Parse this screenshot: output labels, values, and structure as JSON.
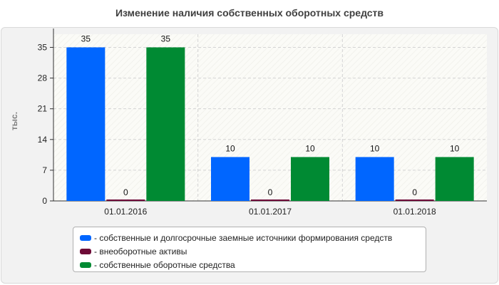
{
  "title": "Изменение наличия собственных оборотных средств",
  "chart_data": {
    "type": "bar",
    "title": "Изменение наличия собственных оборотных средств",
    "ylabel": "тыс.",
    "xlabel": "",
    "categories": [
      "01.01.2016",
      "01.01.2017",
      "01.01.2018"
    ],
    "ylim": [
      0,
      38
    ],
    "yticks": [
      0,
      7,
      14,
      21,
      28,
      35
    ],
    "grid": true,
    "legend_position": "bottom",
    "series": [
      {
        "name": "- собственные и долгосрочные заемные источники формирования средств",
        "color": "#0066ff",
        "values": [
          35,
          10,
          10
        ]
      },
      {
        "name": "- внеоборотные активы",
        "color": "#6d0a37",
        "values": [
          0,
          0,
          0
        ]
      },
      {
        "name": "- собственные оборотные средства",
        "color": "#008a33",
        "values": [
          35,
          10,
          10
        ]
      }
    ]
  }
}
